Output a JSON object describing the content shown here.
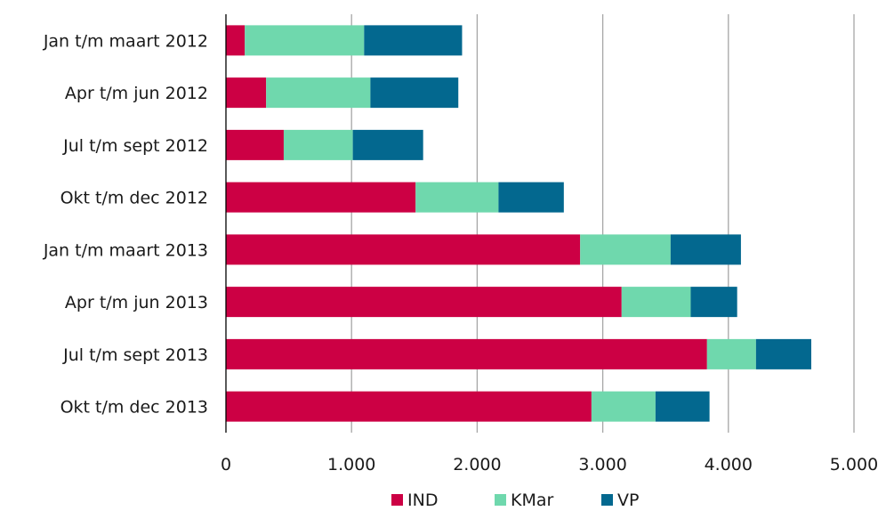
{
  "chart_data": {
    "type": "bar",
    "orientation": "horizontal",
    "stacked": true,
    "title": "",
    "xlabel": "",
    "ylabel": "",
    "categories": [
      "Jan t/m maart 2012",
      "Apr t/m jun 2012",
      "Jul t/m sept 2012",
      "Okt t/m dec 2012",
      "Jan t/m maart 2013",
      "Apr t/m jun 2013",
      "Jul t/m sept 2013",
      "Okt t/m dec 2013"
    ],
    "series": [
      {
        "name": "IND",
        "color": "#cc0044",
        "values": [
          150,
          320,
          460,
          1510,
          2820,
          3150,
          3830,
          2910
        ]
      },
      {
        "name": "KMar",
        "color": "#6fd8ad",
        "values": [
          950,
          830,
          550,
          660,
          720,
          550,
          390,
          510
        ]
      },
      {
        "name": "VP",
        "color": "#03688f",
        "values": [
          780,
          700,
          560,
          520,
          560,
          370,
          440,
          430
        ]
      }
    ],
    "xlim": [
      0,
      5000
    ],
    "xticks": [
      0,
      1000,
      2000,
      3000,
      4000,
      5000
    ],
    "xtick_labels": [
      "0",
      "1.000",
      "2.000",
      "3.000",
      "4.000",
      "5.000"
    ],
    "grid": "vertical",
    "legend_position": "bottom"
  }
}
